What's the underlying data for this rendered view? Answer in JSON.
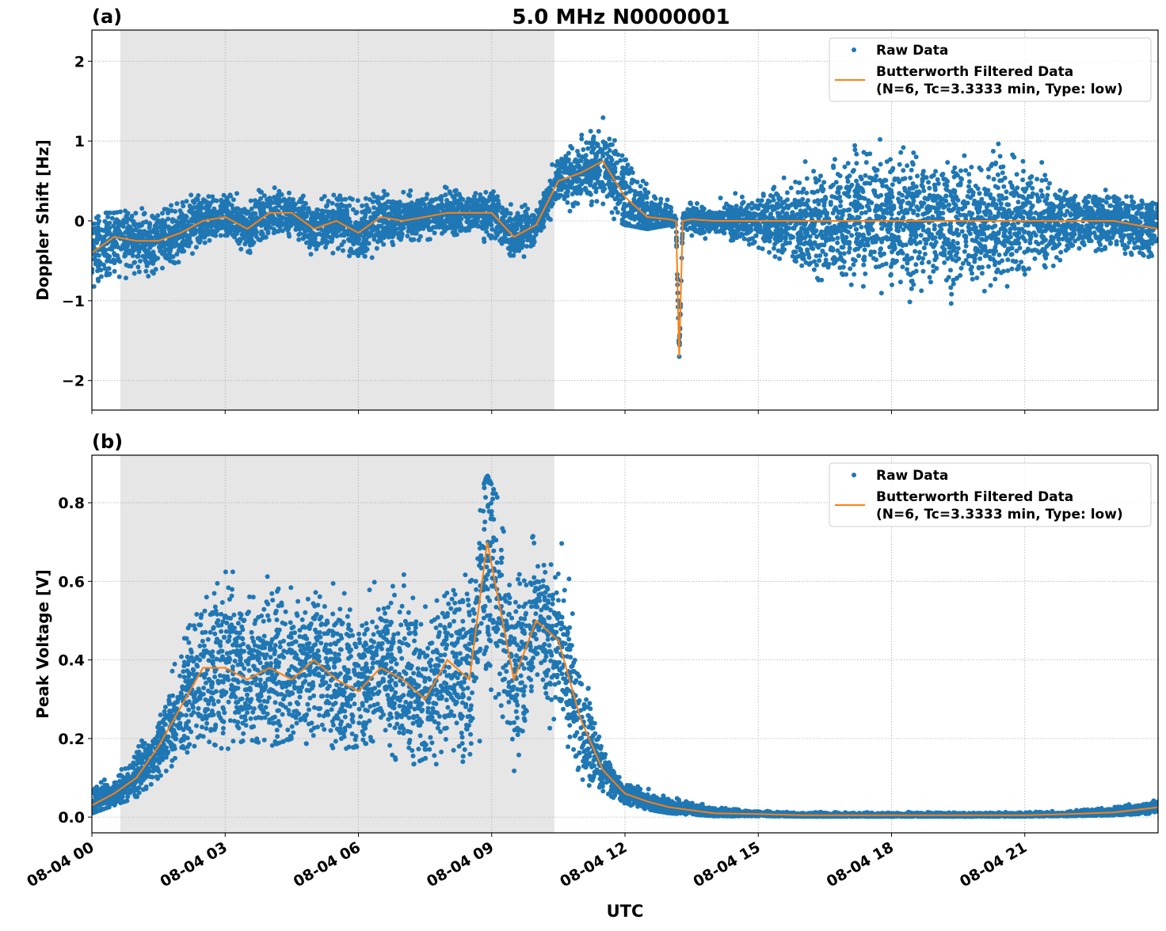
{
  "title": "5.0 MHz N0000001",
  "xlabel": "UTC",
  "x_tick_labels": [
    "08-04 00",
    "08-04 03",
    "08-04 06",
    "08-04 09",
    "08-04 12",
    "08-04 15",
    "08-04 18",
    "08-04 21"
  ],
  "colors": {
    "raw": "#1f77b4",
    "filtered": "#ff7f0e",
    "shade": "#e6e6e6",
    "grid": "#b0b0b0"
  },
  "chart_data": [
    {
      "type": "scatter+line",
      "panel_label": "(a)",
      "ylabel": "Doppler Shift [Hz]",
      "x_unit": "hours UTC on 08-04",
      "xlim": [
        0,
        24
      ],
      "ylim": [
        -2.37,
        2.39
      ],
      "y_ticks": [
        -2,
        -1,
        0,
        1,
        2
      ],
      "y_tick_labels": [
        "−2",
        "−1",
        "0",
        "1",
        "2"
      ],
      "grid": true,
      "shaded_interval": [
        0.64,
        10.41
      ],
      "legend": {
        "placement": "top-right",
        "entries": [
          "Raw Data",
          "Butterworth Filtered Data",
          "(N=6, Tc=3.3333 min, Type: low)"
        ]
      },
      "x": [
        0,
        0.5,
        1,
        1.5,
        2,
        2.5,
        3,
        3.5,
        4,
        4.5,
        5,
        5.5,
        6,
        6.5,
        7,
        7.5,
        8,
        8.5,
        9,
        9.5,
        10,
        10.5,
        11,
        11.5,
        12,
        12.5,
        13,
        13.15,
        13.22,
        13.3,
        13.5,
        14,
        15,
        16,
        17,
        18,
        19,
        20,
        21,
        22,
        23,
        24
      ],
      "series": [
        {
          "name": "Butterworth Filtered Data",
          "kind": "line",
          "values": [
            -0.4,
            -0.2,
            -0.25,
            -0.25,
            -0.15,
            0.0,
            0.05,
            -0.1,
            0.1,
            0.1,
            -0.1,
            0.0,
            -0.15,
            0.05,
            0.0,
            0.05,
            0.1,
            0.1,
            0.1,
            -0.2,
            -0.05,
            0.5,
            0.6,
            0.75,
            0.3,
            0.05,
            0.02,
            0.0,
            -1.7,
            0.0,
            0.02,
            0.0,
            0.0,
            0.0,
            0.0,
            0.0,
            0.0,
            0.0,
            0.0,
            0.0,
            0.0,
            -0.1
          ]
        },
        {
          "name": "Raw Data",
          "kind": "scatter-envelope",
          "lower": [
            -1.05,
            -0.9,
            -0.85,
            -0.8,
            -0.7,
            -0.5,
            -0.4,
            -0.6,
            -0.4,
            -0.35,
            -0.6,
            -0.5,
            -0.7,
            -0.5,
            -0.4,
            -0.3,
            -0.35,
            -0.3,
            -0.4,
            -0.7,
            -0.4,
            0.0,
            0.2,
            0.1,
            -0.05,
            -0.1,
            -0.05,
            -0.1,
            -1.75,
            -0.1,
            -0.3,
            -0.3,
            -0.5,
            -0.9,
            -1.2,
            -1.3,
            -1.2,
            -1.3,
            -1.1,
            -0.6,
            -0.5,
            -0.7
          ],
          "upper": [
            0.1,
            0.1,
            0.15,
            0.2,
            0.3,
            0.35,
            0.45,
            0.35,
            0.55,
            0.55,
            0.3,
            0.35,
            0.3,
            0.4,
            0.5,
            0.45,
            0.55,
            0.5,
            0.5,
            0.2,
            0.3,
            1.0,
            1.2,
            1.45,
            1.1,
            0.6,
            0.3,
            0.1,
            -1.6,
            0.1,
            0.3,
            0.3,
            0.5,
            0.9,
            1.2,
            1.3,
            1.2,
            1.3,
            1.1,
            0.6,
            0.4,
            0.2
          ]
        }
      ]
    },
    {
      "type": "scatter+line",
      "panel_label": "(b)",
      "ylabel": "Peak Voltage [V]",
      "x_unit": "hours UTC on 08-04",
      "xlim": [
        0,
        24
      ],
      "ylim": [
        -0.04,
        0.921
      ],
      "y_ticks": [
        0,
        0.2,
        0.4,
        0.6,
        0.8
      ],
      "y_tick_labels": [
        "0.0",
        "0.2",
        "0.4",
        "0.6",
        "0.8"
      ],
      "grid": true,
      "shaded_interval": [
        0.64,
        10.41
      ],
      "legend": {
        "placement": "top-right",
        "entries": [
          "Raw Data",
          "Butterworth Filtered Data",
          "(N=6, Tc=3.3333 min, Type: low)"
        ]
      },
      "x": [
        0,
        0.5,
        1,
        1.5,
        2,
        2.5,
        3,
        3.5,
        4,
        4.5,
        5,
        5.5,
        6,
        6.5,
        7,
        7.5,
        8,
        8.5,
        8.9,
        9.5,
        10,
        10.5,
        11,
        11.5,
        12,
        12.5,
        13,
        14,
        15,
        16,
        17,
        18,
        19,
        20,
        21,
        22,
        23,
        24
      ],
      "series": [
        {
          "name": "Butterworth Filtered Data",
          "kind": "line",
          "values": [
            0.03,
            0.06,
            0.1,
            0.18,
            0.28,
            0.38,
            0.38,
            0.35,
            0.38,
            0.35,
            0.4,
            0.35,
            0.32,
            0.38,
            0.35,
            0.3,
            0.4,
            0.35,
            0.7,
            0.35,
            0.5,
            0.45,
            0.25,
            0.12,
            0.06,
            0.04,
            0.025,
            0.01,
            0.008,
            0.005,
            0.005,
            0.005,
            0.005,
            0.005,
            0.005,
            0.008,
            0.012,
            0.025
          ]
        },
        {
          "name": "Raw Data",
          "kind": "scatter-envelope",
          "lower": [
            0.01,
            0.03,
            0.05,
            0.1,
            0.15,
            0.2,
            0.17,
            0.2,
            0.18,
            0.2,
            0.18,
            0.17,
            0.18,
            0.2,
            0.12,
            0.15,
            0.12,
            0.15,
            0.1,
            0.1,
            0.18,
            0.2,
            0.1,
            0.05,
            0.03,
            0.02,
            0.01,
            0.003,
            0.003,
            0.002,
            0.002,
            0.002,
            0.002,
            0.002,
            0.002,
            0.003,
            0.005,
            0.01
          ],
          "upper": [
            0.1,
            0.12,
            0.2,
            0.3,
            0.5,
            0.7,
            0.72,
            0.65,
            0.7,
            0.68,
            0.7,
            0.68,
            0.62,
            0.68,
            0.7,
            0.6,
            0.7,
            0.75,
            0.87,
            0.72,
            0.82,
            0.78,
            0.5,
            0.2,
            0.1,
            0.08,
            0.06,
            0.03,
            0.02,
            0.015,
            0.015,
            0.015,
            0.015,
            0.015,
            0.015,
            0.02,
            0.03,
            0.05
          ]
        }
      ]
    }
  ]
}
